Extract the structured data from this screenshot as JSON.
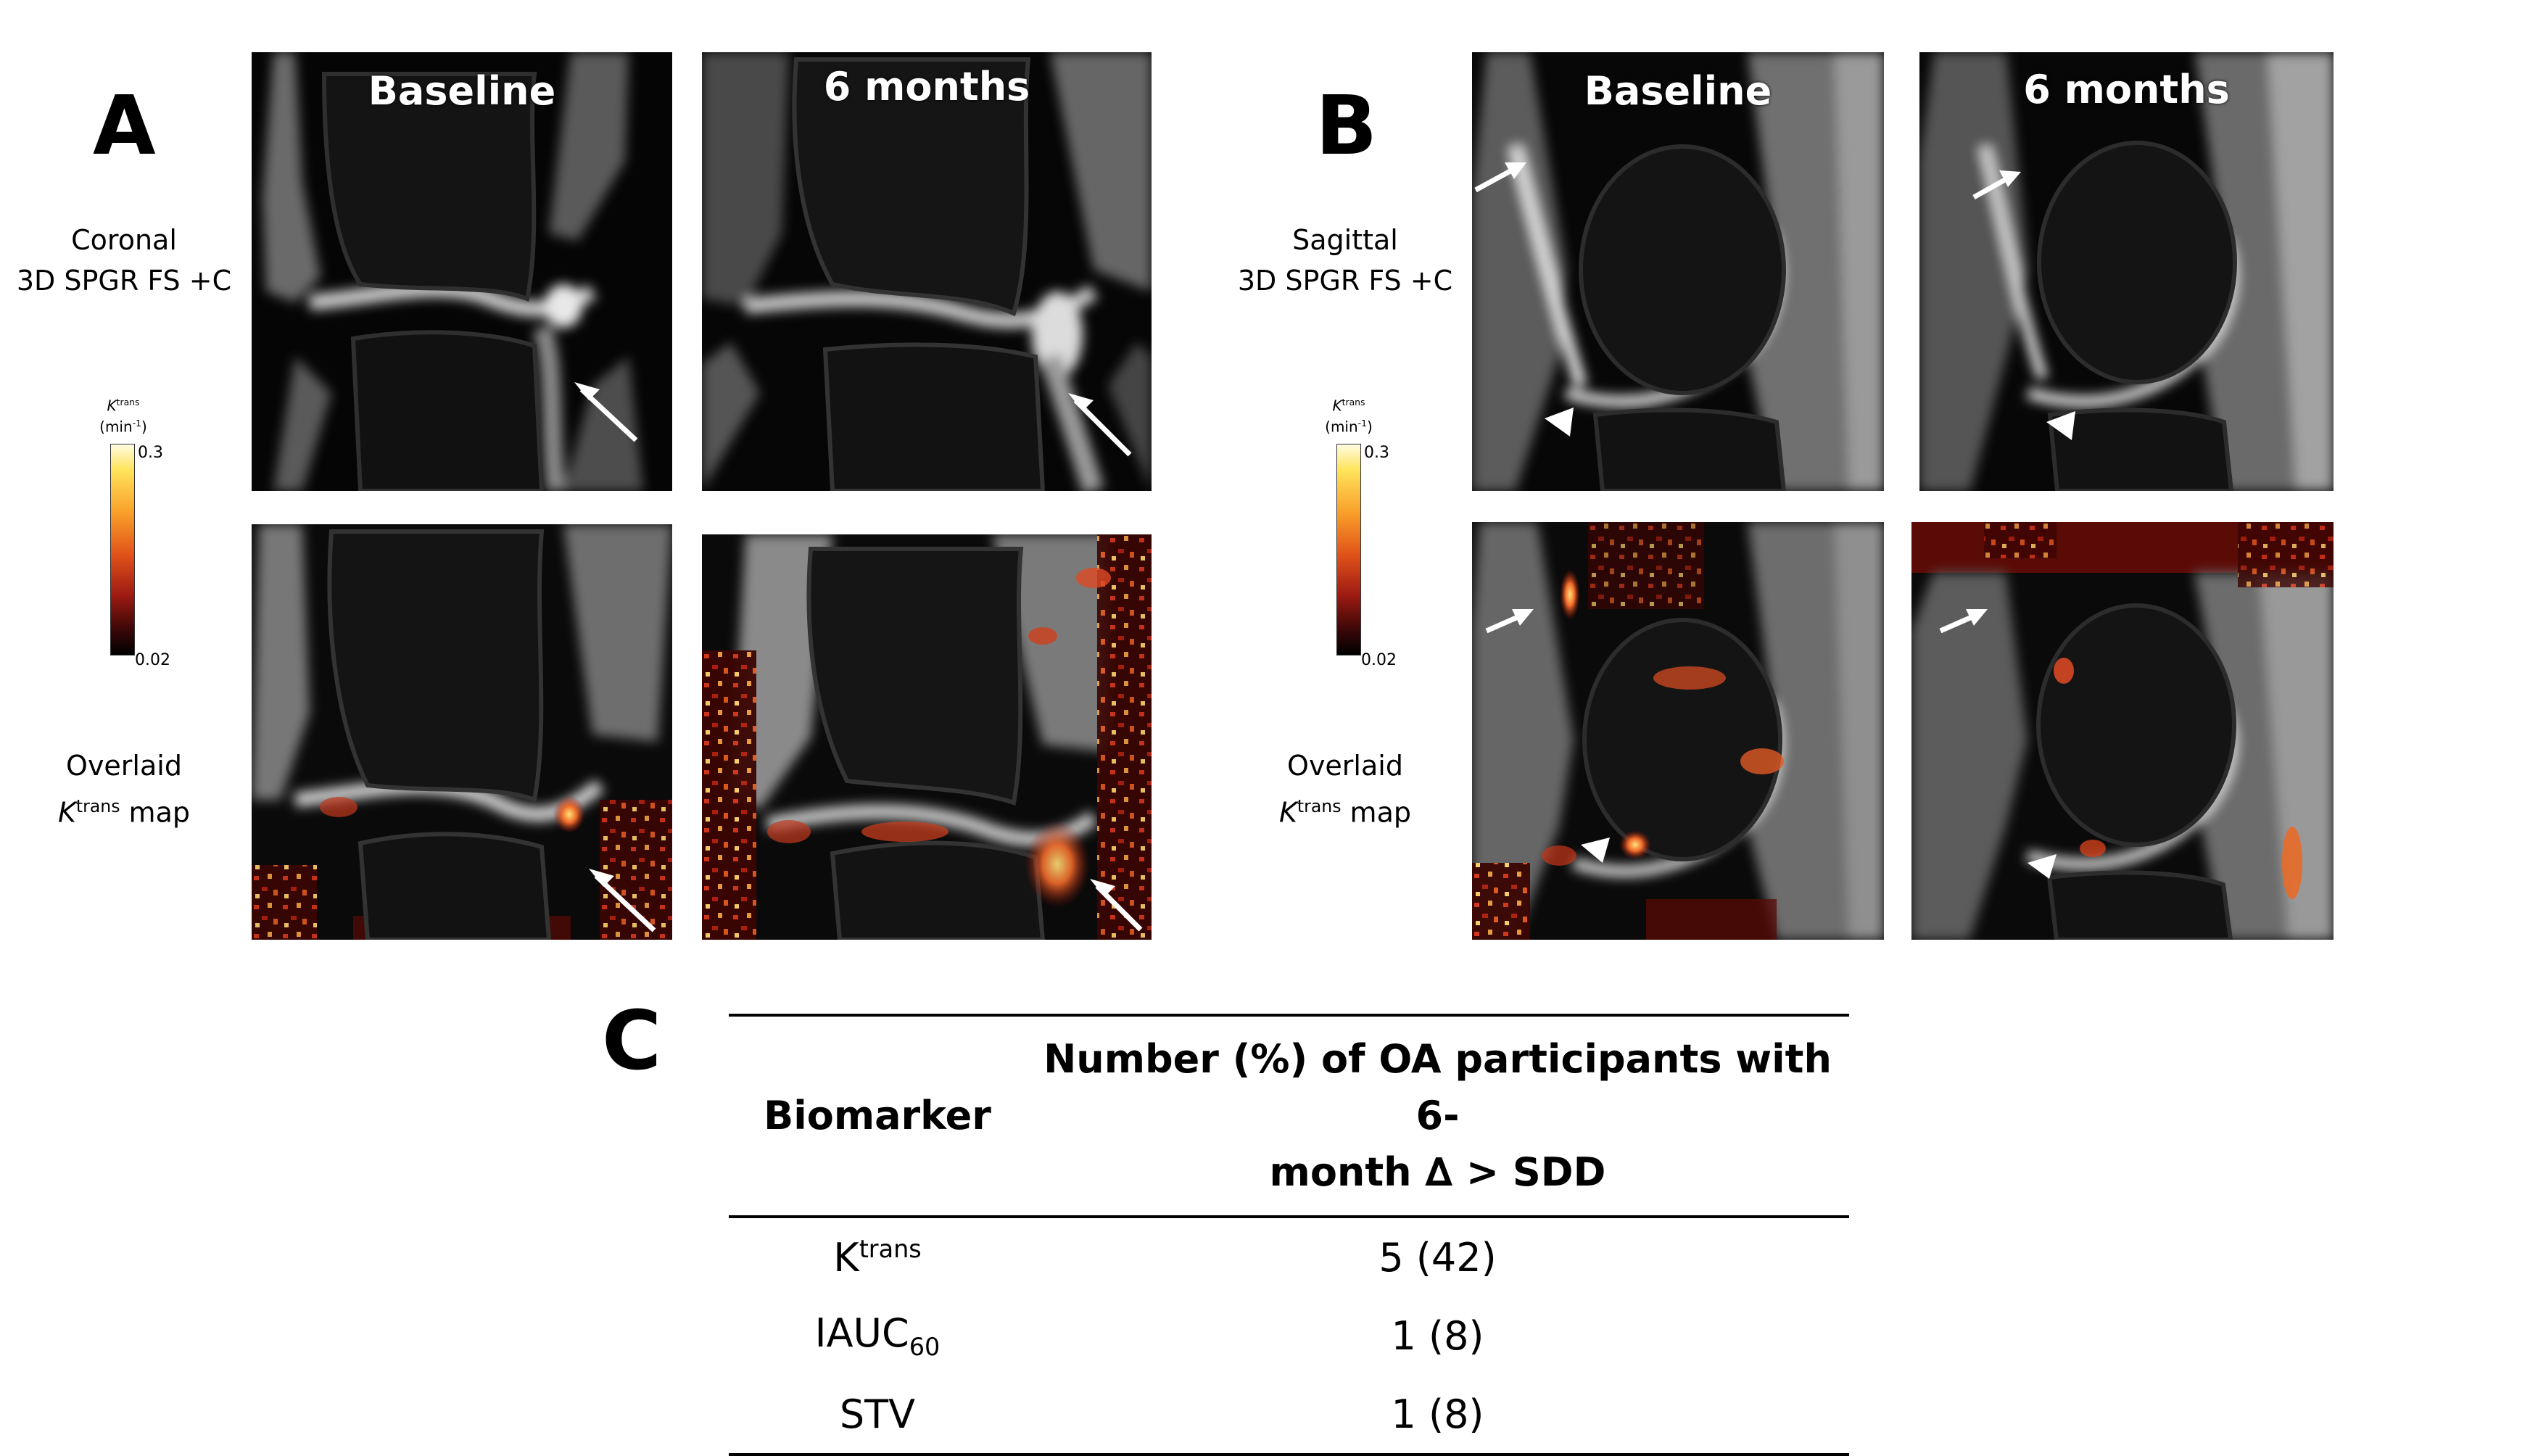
{
  "panels": {
    "a": {
      "letter": "A",
      "col_baseline": "Baseline",
      "col_6mo": "6 months",
      "row1_line1": "Coronal",
      "row1_line2": "3D SPGR FS +C",
      "row2_line1": "Overlaid",
      "row2_k": "K",
      "row2_sup": "trans",
      "row2_map": " map"
    },
    "b": {
      "letter": "B",
      "col_baseline": "Baseline",
      "col_6mo": "6 months",
      "row1_line1": "Sagittal",
      "row1_line2": "3D SPGR FS +C",
      "row2_line1": "Overlaid",
      "row2_k": "K",
      "row2_sup": "trans",
      "row2_map": " map"
    },
    "c": {
      "letter": "C"
    }
  },
  "colorbar": {
    "k": "K",
    "sup": "trans",
    "unit_pre": "(min",
    "unit_sup": "-1",
    "unit_post": ")",
    "max": "0.3",
    "min": "0.02",
    "colors": [
      "#fffbe0",
      "#ffe45c",
      "#f9a12a",
      "#e2541a",
      "#9c1a12",
      "#3b0707",
      "#000000"
    ]
  },
  "table": {
    "header_biomarker": "Biomarker",
    "header_number_line1": "Number (%) of OA participants with 6-",
    "header_number_line2": "month ∆  > SDD",
    "rows": [
      {
        "base": "K",
        "sup": "trans",
        "sub": "",
        "value": "5 (42)"
      },
      {
        "base": "IAUC",
        "sup": "",
        "sub": "60",
        "value": "1 (8)"
      },
      {
        "base": "STV",
        "sup": "",
        "sub": "",
        "value": "1 (8)"
      }
    ]
  },
  "image_content": {
    "a_top_left": "coronal knee MRI, baseline, arrow",
    "a_top_right": "coronal knee MRI, 6 months, arrow",
    "a_bottom_left": "coronal Ktrans overlay, baseline, arrow",
    "a_bottom_right": "coronal Ktrans overlay, 6 months, arrow",
    "b_top_left": "sagittal knee MRI, baseline, arrow and arrowhead",
    "b_top_right": "sagittal knee MRI, 6 months, arrow and arrowhead",
    "b_bottom_left": "sagittal Ktrans overlay, baseline, arrow and arrowhead",
    "b_bottom_right": "sagittal Ktrans overlay, 6 months, arrow and arrowhead"
  }
}
